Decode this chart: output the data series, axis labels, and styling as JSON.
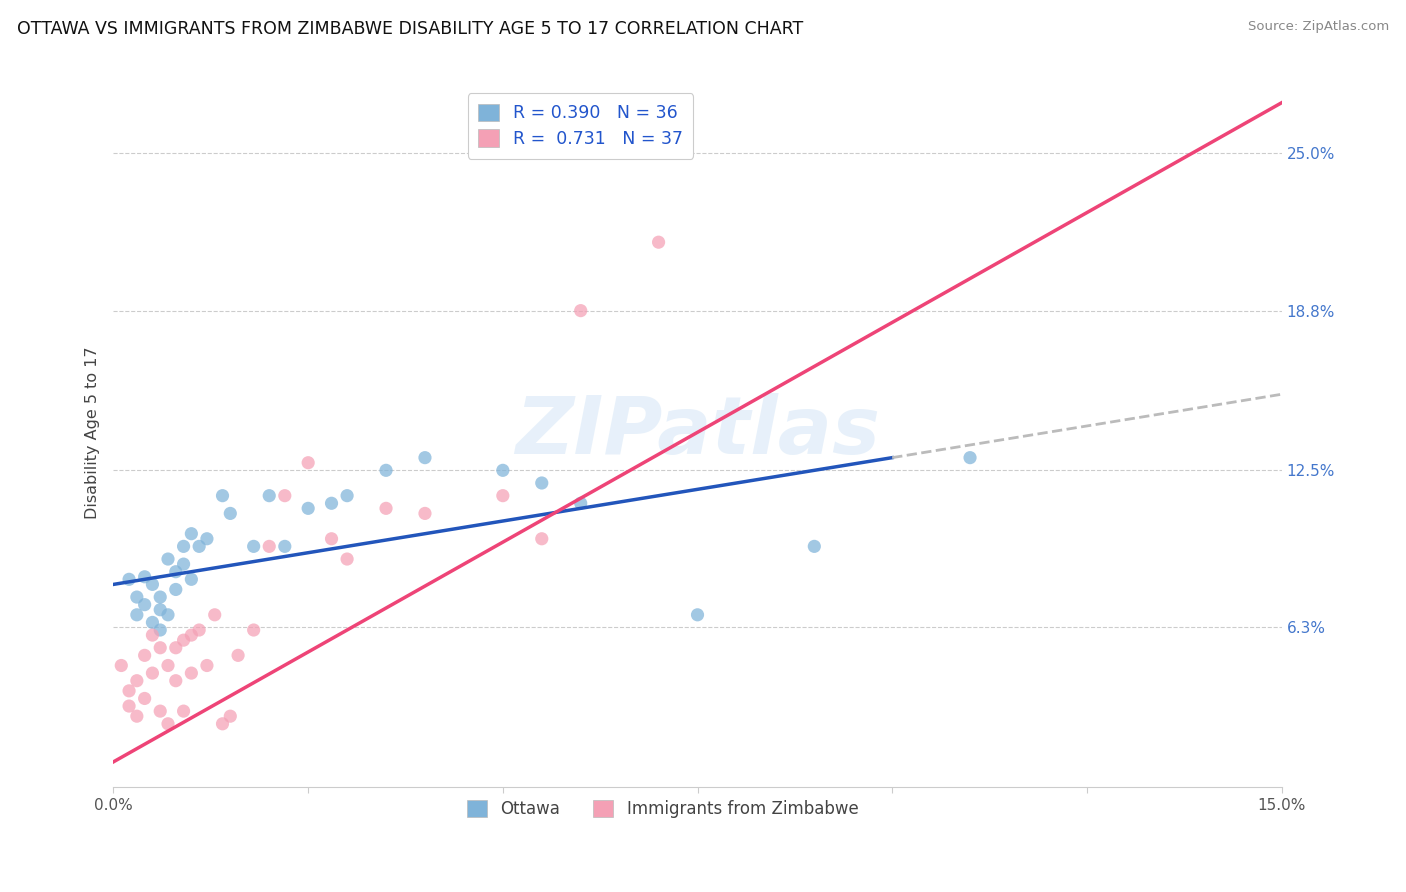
{
  "title": "OTTAWA VS IMMIGRANTS FROM ZIMBABWE DISABILITY AGE 5 TO 17 CORRELATION CHART",
  "source": "Source: ZipAtlas.com",
  "ylabel": "Disability Age 5 to 17",
  "xmin": 0.0,
  "xmax": 0.15,
  "ymin": 0.0,
  "ymax": 0.28,
  "ytick_vals": [
    0.063,
    0.125,
    0.188,
    0.25
  ],
  "ytick_labels": [
    "6.3%",
    "12.5%",
    "18.8%",
    "25.0%"
  ],
  "xtick_vals": [
    0.0,
    0.025,
    0.05,
    0.075,
    0.1,
    0.125,
    0.15
  ],
  "xtick_labels": [
    "0.0%",
    "",
    "",
    "",
    "",
    "",
    "15.0%"
  ],
  "watermark": "ZIPatlas",
  "legend_r_blue": "0.390",
  "legend_n_blue": "36",
  "legend_r_pink": "0.731",
  "legend_n_pink": "37",
  "blue_scatter_color": "#7FB3D9",
  "pink_scatter_color": "#F4A0B5",
  "blue_line_color": "#2255BB",
  "pink_line_color": "#EE4477",
  "blue_line_ext_color": "#BBBBBB",
  "scatter_size": 90,
  "scatter_alpha": 0.72,
  "ottawa_x": [
    0.002,
    0.003,
    0.003,
    0.004,
    0.004,
    0.005,
    0.005,
    0.006,
    0.006,
    0.006,
    0.007,
    0.007,
    0.008,
    0.008,
    0.009,
    0.009,
    0.01,
    0.01,
    0.011,
    0.012,
    0.014,
    0.015,
    0.018,
    0.02,
    0.022,
    0.025,
    0.028,
    0.03,
    0.035,
    0.04,
    0.05,
    0.055,
    0.06,
    0.075,
    0.09,
    0.11
  ],
  "ottawa_y": [
    0.082,
    0.075,
    0.068,
    0.083,
    0.072,
    0.08,
    0.065,
    0.07,
    0.075,
    0.062,
    0.09,
    0.068,
    0.085,
    0.078,
    0.095,
    0.088,
    0.1,
    0.082,
    0.095,
    0.098,
    0.115,
    0.108,
    0.095,
    0.115,
    0.095,
    0.11,
    0.112,
    0.115,
    0.125,
    0.13,
    0.125,
    0.12,
    0.112,
    0.068,
    0.095,
    0.13
  ],
  "zim_x": [
    0.001,
    0.002,
    0.002,
    0.003,
    0.003,
    0.004,
    0.004,
    0.005,
    0.005,
    0.006,
    0.006,
    0.007,
    0.007,
    0.008,
    0.008,
    0.009,
    0.009,
    0.01,
    0.01,
    0.011,
    0.012,
    0.013,
    0.014,
    0.015,
    0.016,
    0.018,
    0.02,
    0.022,
    0.025,
    0.028,
    0.03,
    0.035,
    0.04,
    0.05,
    0.055,
    0.06,
    0.07
  ],
  "zim_y": [
    0.048,
    0.038,
    0.032,
    0.042,
    0.028,
    0.052,
    0.035,
    0.06,
    0.045,
    0.055,
    0.03,
    0.048,
    0.025,
    0.055,
    0.042,
    0.058,
    0.03,
    0.06,
    0.045,
    0.062,
    0.048,
    0.068,
    0.025,
    0.028,
    0.052,
    0.062,
    0.095,
    0.115,
    0.128,
    0.098,
    0.09,
    0.11,
    0.108,
    0.115,
    0.098,
    0.188,
    0.215
  ],
  "blue_line_x0": 0.0,
  "blue_line_y0": 0.08,
  "blue_line_x1": 0.15,
  "blue_line_y1": 0.155,
  "pink_line_x0": 0.0,
  "pink_line_y0": 0.01,
  "pink_line_x1": 0.15,
  "pink_line_y1": 0.27
}
